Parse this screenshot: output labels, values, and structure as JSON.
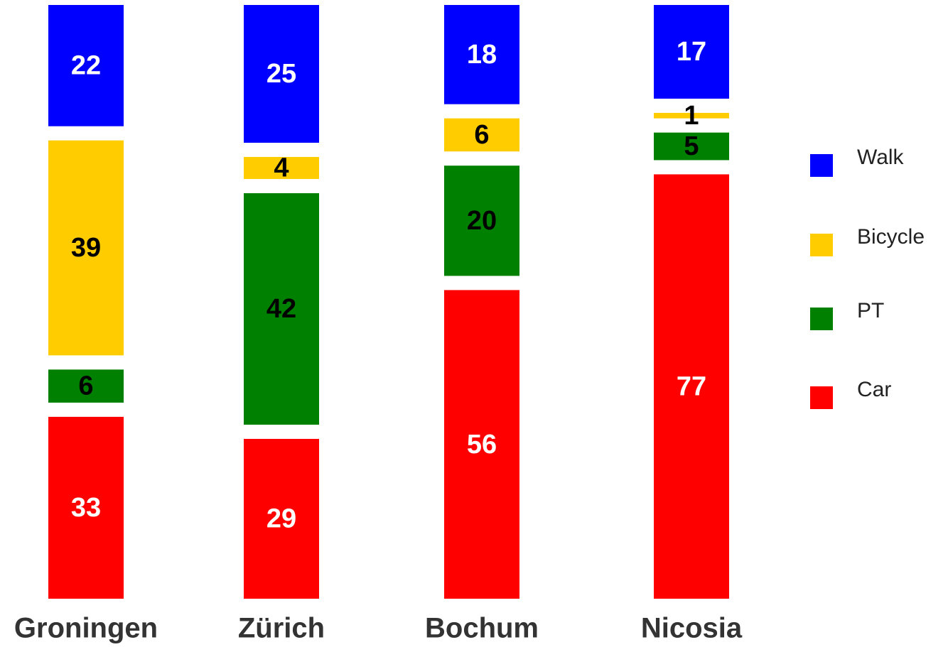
{
  "chart_data": {
    "type": "stacked_bar",
    "categories": [
      "Groningen",
      "Zürich",
      "Bochum",
      "Nicosia"
    ],
    "series": [
      {
        "name": "Walk",
        "color": "#0000ff",
        "label_color": "#ffffff",
        "values": [
          22,
          25,
          18,
          17
        ]
      },
      {
        "name": "Bicycle",
        "color": "#ffcc00",
        "label_color": "#000000",
        "values": [
          39,
          4,
          6,
          1
        ]
      },
      {
        "name": "PT",
        "color": "#008000",
        "label_color": "#000000",
        "values": [
          6,
          42,
          20,
          5
        ]
      },
      {
        "name": "Car",
        "color": "#ff0000",
        "label_color": "#ffffff",
        "values": [
          33,
          29,
          56,
          77
        ]
      }
    ],
    "legend": "right"
  }
}
